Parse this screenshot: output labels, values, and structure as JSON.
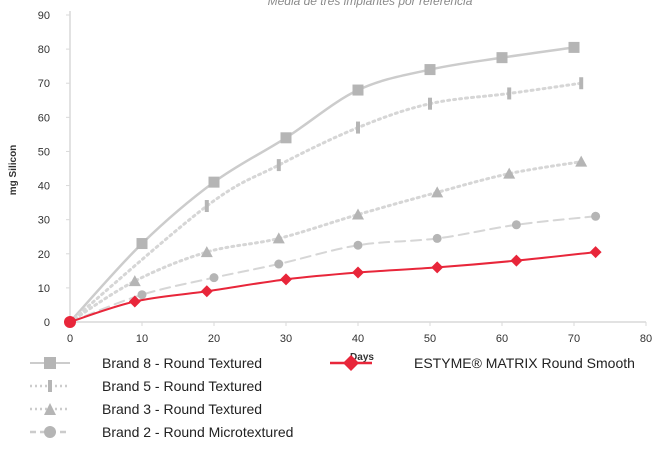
{
  "chart_data": {
    "type": "line",
    "title": "Media de tres implantes por referencia",
    "xlabel": "Days",
    "ylabel": "mg Silicon",
    "xlim": [
      0,
      80
    ],
    "ylim": [
      0,
      90
    ],
    "x_ticks": [
      0,
      10,
      20,
      30,
      40,
      50,
      60,
      70,
      80
    ],
    "y_ticks": [
      0,
      10,
      20,
      30,
      40,
      50,
      60,
      70,
      80,
      90
    ],
    "grid": false,
    "legend_position": "bottom",
    "series": [
      {
        "name": "Brand 8 - Round Textured",
        "marker": "square",
        "line": "solid",
        "color": "#cccccc",
        "marker_color": "#b5b5b5",
        "x": [
          0,
          10,
          20,
          30,
          40,
          50,
          60,
          70
        ],
        "y": [
          0,
          23,
          41,
          54,
          68,
          74,
          77.5,
          80.5
        ]
      },
      {
        "name": "Brand 5 - Round Textured",
        "marker": "bar",
        "line": "dotted",
        "color": "#d6d6d6",
        "marker_color": "#b5b5b5",
        "x": [
          0,
          19,
          29,
          40,
          50,
          61,
          71
        ],
        "y": [
          0,
          34,
          46,
          57,
          64,
          67,
          70
        ]
      },
      {
        "name": "Brand 3 - Round Textured",
        "marker": "triangle",
        "line": "dotted",
        "color": "#d6d6d6",
        "marker_color": "#b5b5b5",
        "x": [
          0,
          9,
          19,
          29,
          40,
          51,
          61,
          71
        ],
        "y": [
          0,
          12,
          20.5,
          24.5,
          31.5,
          38,
          43.5,
          47
        ]
      },
      {
        "name": "Brand 2 - Round Microtextured",
        "marker": "circle",
        "line": "dashed",
        "color": "#d6d6d6",
        "marker_color": "#b5b5b5",
        "x": [
          0,
          10,
          20,
          29,
          40,
          51,
          62,
          73
        ],
        "y": [
          0,
          8,
          13,
          17,
          22.5,
          24.5,
          28.5,
          31
        ]
      },
      {
        "name": "ESTYME® MATRIX Round Smooth",
        "marker": "diamond",
        "line": "solid",
        "color": "#e8263a",
        "marker_color": "#e8263a",
        "x": [
          0,
          9,
          19,
          30,
          40,
          51,
          62,
          73
        ],
        "y": [
          0,
          6,
          9,
          12.5,
          14.5,
          16,
          18,
          20.5
        ]
      }
    ]
  }
}
